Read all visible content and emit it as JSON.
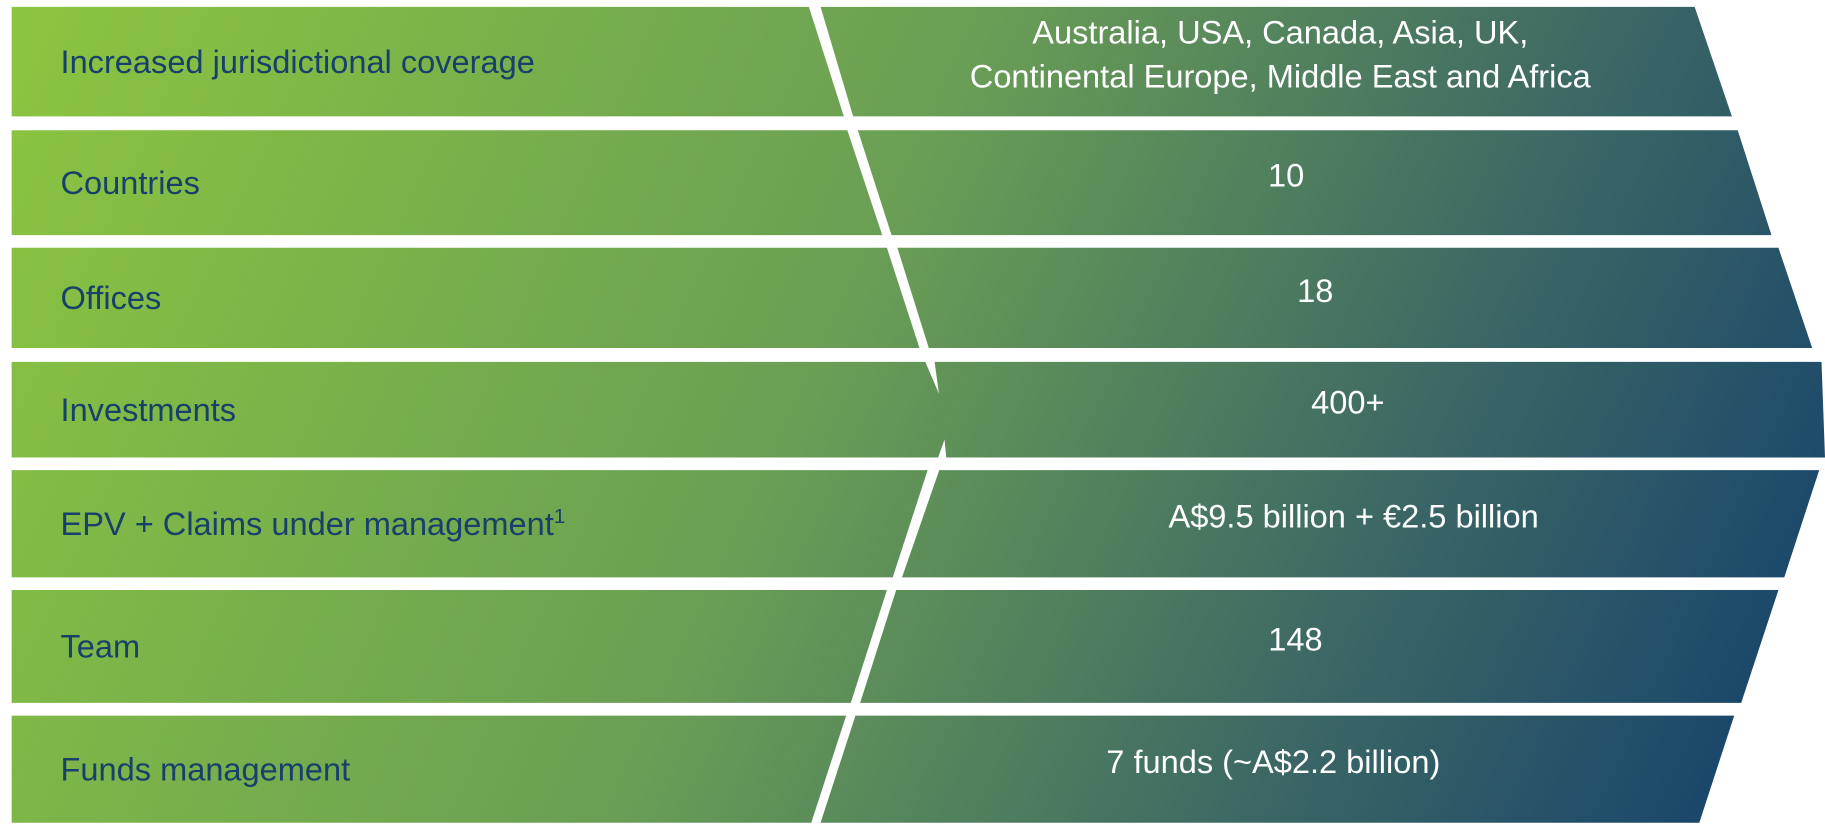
{
  "rows": [
    {
      "label": "Increased jurisdictional coverage",
      "value": [
        "Australia, USA, Canada, Asia, UK,",
        "Continental Europe, Middle East and Africa"
      ]
    },
    {
      "label": "Countries",
      "value": [
        "10"
      ]
    },
    {
      "label": "Offices",
      "value": [
        "18"
      ]
    },
    {
      "label": "Investments",
      "value": [
        "400+"
      ]
    },
    {
      "label": "EPV + Claims under management",
      "note": "1",
      "value": [
        "A$9.5 billion + €2.5 billion"
      ]
    },
    {
      "label": "Team",
      "value": [
        "148"
      ]
    },
    {
      "label": "Funds management",
      "value": [
        "7 funds (~A$2.2 billion)"
      ]
    }
  ]
}
